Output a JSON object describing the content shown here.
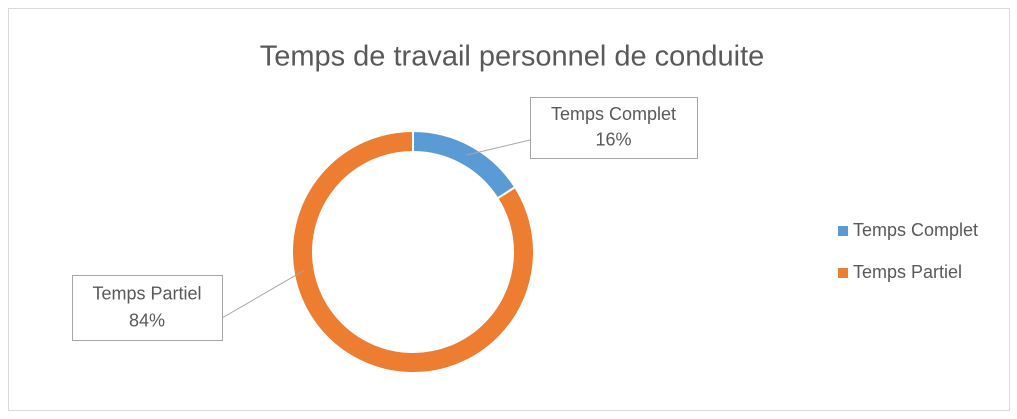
{
  "chart_data": {
    "type": "donut",
    "title": "Temps de travail personnel de conduite",
    "categories": [
      "Temps Complet",
      "Temps Partiel"
    ],
    "values": [
      16,
      84
    ],
    "value_labels": [
      "16%",
      "84%"
    ],
    "colors": [
      "#5b9bd5",
      "#ed7d31"
    ],
    "legend": "right"
  }
}
